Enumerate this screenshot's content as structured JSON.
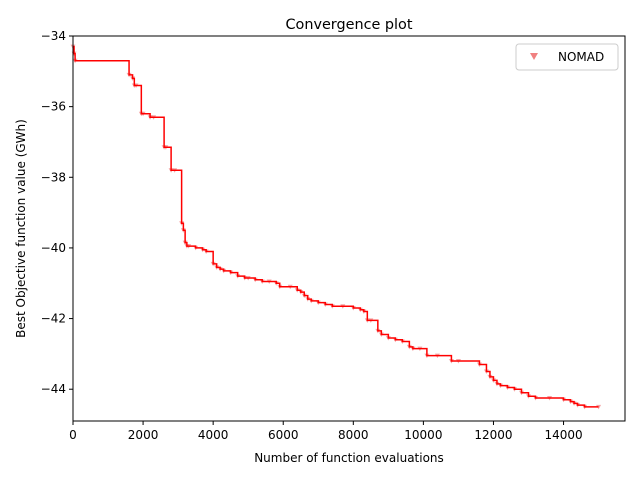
{
  "chart_data": {
    "type": "line",
    "title": "Convergence plot",
    "xlabel": "Number of function evaluations",
    "ylabel": "Best Objective function value (GWh)",
    "xlim": [
      0,
      15000
    ],
    "ylim": [
      -44.9,
      -34.0
    ],
    "xticks": [
      0,
      2000,
      4000,
      6000,
      8000,
      10000,
      12000,
      14000
    ],
    "xtick_labels": [
      "0",
      "2000",
      "4000",
      "6000",
      "8000",
      "10000",
      "12000",
      "14000"
    ],
    "yticks": [
      -34,
      -36,
      -38,
      -40,
      -42,
      -44
    ],
    "ytick_labels": [
      "−34",
      "−36",
      "−38",
      "−40",
      "−42",
      "−44"
    ],
    "grid": false,
    "legend_position": "top-right",
    "series": [
      {
        "name": "NOMAD",
        "marker": "triangle-down",
        "color": "#f08080",
        "line_color": "#ff0000",
        "x": [
          0,
          30,
          60,
          1600,
          1700,
          1750,
          1800,
          1950,
          2000,
          2200,
          2300,
          2600,
          2650,
          2800,
          2900,
          3100,
          3150,
          3200,
          3250,
          3300,
          3500,
          3700,
          3800,
          4000,
          4100,
          4200,
          4300,
          4500,
          4700,
          4900,
          5000,
          5200,
          5400,
          5600,
          5800,
          5900,
          6200,
          6400,
          6500,
          6600,
          6700,
          6800,
          7000,
          7200,
          7400,
          7700,
          8000,
          8200,
          8300,
          8400,
          8500,
          8700,
          8800,
          9000,
          9200,
          9400,
          9600,
          9700,
          9900,
          10100,
          10400,
          10800,
          11000,
          11600,
          11800,
          11900,
          12000,
          12100,
          12200,
          12400,
          12600,
          12800,
          13000,
          13200,
          13600,
          14000,
          14200,
          14300,
          14400,
          14600,
          15000
        ],
        "y": [
          -34.3,
          -34.5,
          -34.7,
          -35.1,
          -35.2,
          -35.4,
          -35.4,
          -36.2,
          -36.2,
          -36.3,
          -36.3,
          -37.15,
          -37.15,
          -37.8,
          -37.8,
          -39.3,
          -39.5,
          -39.85,
          -39.95,
          -39.95,
          -40.0,
          -40.05,
          -40.1,
          -40.45,
          -40.55,
          -40.6,
          -40.65,
          -40.7,
          -40.8,
          -40.85,
          -40.85,
          -40.9,
          -40.95,
          -40.95,
          -41.0,
          -41.1,
          -41.1,
          -41.2,
          -41.25,
          -41.35,
          -41.45,
          -41.5,
          -41.55,
          -41.6,
          -41.65,
          -41.65,
          -41.7,
          -41.75,
          -41.8,
          -42.05,
          -42.05,
          -42.35,
          -42.45,
          -42.55,
          -42.6,
          -42.65,
          -42.8,
          -42.85,
          -42.85,
          -43.05,
          -43.05,
          -43.2,
          -43.2,
          -43.3,
          -43.5,
          -43.65,
          -43.75,
          -43.85,
          -43.9,
          -43.95,
          -44.0,
          -44.1,
          -44.2,
          -44.25,
          -44.25,
          -44.3,
          -44.35,
          -44.4,
          -44.45,
          -44.5,
          -44.5
        ]
      }
    ]
  }
}
